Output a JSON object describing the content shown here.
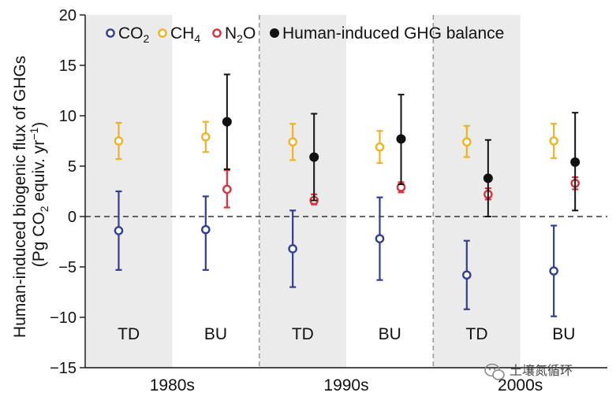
{
  "chart_data": {
    "type": "scatter",
    "ylabel_line1": "Human-induced biogenic flux of GHGs",
    "ylabel_line2": {
      "pre": "(Pg CO",
      "sub": "2",
      "mid": " equiv. yr",
      "sup": "−1",
      "post": ")"
    },
    "ylim": [
      -15,
      20
    ],
    "yticks": [
      20,
      15,
      10,
      5,
      0,
      -5,
      -10,
      -15
    ],
    "zero_line": "dashed",
    "groups": [
      "1980s",
      "1990s",
      "2000s"
    ],
    "methods": [
      "TD",
      "BU"
    ],
    "legend": [
      {
        "key": "CO2",
        "base": "CO",
        "sub": "2",
        "color": "#2e3f95",
        "marker": "open-circle"
      },
      {
        "key": "CH4",
        "base": "CH",
        "sub": "4",
        "color": "#f0b323",
        "marker": "open-circle"
      },
      {
        "key": "N2O",
        "pre": "N",
        "sub": "2",
        "post": "O",
        "color": "#d9323a",
        "marker": "open-circle"
      },
      {
        "key": "balance",
        "base": "Human-induced GHG balance",
        "color": "#111111",
        "marker": "filled-circle"
      }
    ],
    "series": [
      {
        "key": "CO2",
        "color": "#2e3f95",
        "filled": false,
        "points": [
          {
            "group": "1980s",
            "method": "TD",
            "value": -1.4,
            "low": -5.3,
            "high": 2.5
          },
          {
            "group": "1980s",
            "method": "BU",
            "value": -1.3,
            "low": -5.3,
            "high": 2.0
          },
          {
            "group": "1990s",
            "method": "TD",
            "value": -3.2,
            "low": -7.0,
            "high": 0.6
          },
          {
            "group": "1990s",
            "method": "BU",
            "value": -2.2,
            "low": -6.3,
            "high": 1.9
          },
          {
            "group": "2000s",
            "method": "TD",
            "value": -5.8,
            "low": -9.2,
            "high": -2.4
          },
          {
            "group": "2000s",
            "method": "BU",
            "value": -5.4,
            "low": -9.9,
            "high": -0.9
          }
        ]
      },
      {
        "key": "CH4",
        "color": "#f0b323",
        "filled": false,
        "points": [
          {
            "group": "1980s",
            "method": "TD",
            "value": 7.5,
            "low": 5.7,
            "high": 9.3
          },
          {
            "group": "1980s",
            "method": "BU",
            "value": 7.9,
            "low": 6.4,
            "high": 9.4
          },
          {
            "group": "1990s",
            "method": "TD",
            "value": 7.4,
            "low": 5.6,
            "high": 9.2
          },
          {
            "group": "1990s",
            "method": "BU",
            "value": 6.9,
            "low": 5.3,
            "high": 8.5
          },
          {
            "group": "2000s",
            "method": "TD",
            "value": 7.4,
            "low": 5.9,
            "high": 9.0
          },
          {
            "group": "2000s",
            "method": "BU",
            "value": 7.5,
            "low": 5.8,
            "high": 9.2
          }
        ]
      },
      {
        "key": "N2O",
        "color": "#d9323a",
        "filled": false,
        "points": [
          {
            "group": "1980s",
            "method": "BU",
            "value": 2.7,
            "low": 0.9,
            "high": 4.6
          },
          {
            "group": "1990s",
            "method": "TD",
            "value": 1.6,
            "low": 1.2,
            "high": 2.2
          },
          {
            "group": "1990s",
            "method": "BU",
            "value": 2.9,
            "low": 2.4,
            "high": 3.4
          },
          {
            "group": "2000s",
            "method": "TD",
            "value": 2.2,
            "low": 1.7,
            "high": 2.8
          },
          {
            "group": "2000s",
            "method": "BU",
            "value": 3.3,
            "low": 2.7,
            "high": 3.9
          }
        ]
      },
      {
        "key": "balance",
        "color": "#111111",
        "filled": true,
        "points": [
          {
            "group": "1980s",
            "method": "BU",
            "value": 9.4,
            "low": 4.7,
            "high": 14.1
          },
          {
            "group": "1990s",
            "method": "TD",
            "value": 5.9,
            "low": 1.6,
            "high": 10.2
          },
          {
            "group": "1990s",
            "method": "BU",
            "value": 7.7,
            "low": 3.2,
            "high": 12.1
          },
          {
            "group": "2000s",
            "method": "TD",
            "value": 3.8,
            "low": 0.0,
            "high": 7.6
          },
          {
            "group": "2000s",
            "method": "BU",
            "value": 5.4,
            "low": 0.6,
            "high": 10.3
          }
        ]
      }
    ]
  },
  "watermark": {
    "text": "土壤氮循环",
    "icon": "wechat-icon"
  }
}
